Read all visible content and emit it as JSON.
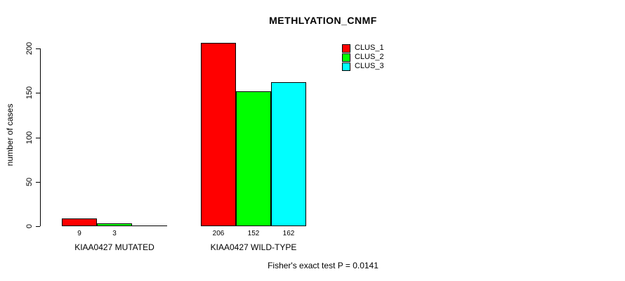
{
  "chart_data": {
    "type": "bar",
    "title": "METHLYATION_CNMF",
    "ylabel": "number of cases",
    "ylim": [
      0,
      200
    ],
    "yticks": [
      0,
      50,
      100,
      150,
      200
    ],
    "grid": false,
    "legend_position": "top-right",
    "series": [
      {
        "name": "CLUS_1",
        "color": "#ff0000"
      },
      {
        "name": "CLUS_2",
        "color": "#00ff00"
      },
      {
        "name": "CLUS_3",
        "color": "#00ffff"
      }
    ],
    "groups": [
      {
        "label": "KIAA0427 MUTATED",
        "values": [
          9,
          3,
          0
        ],
        "bar_labels": [
          "9",
          "3",
          ""
        ]
      },
      {
        "label": "KIAA0427 WILD-TYPE",
        "values": [
          206,
          152,
          162
        ],
        "bar_labels": [
          "206",
          "152",
          "162"
        ]
      }
    ],
    "annotation": "Fisher's exact test P = 0.0141"
  }
}
